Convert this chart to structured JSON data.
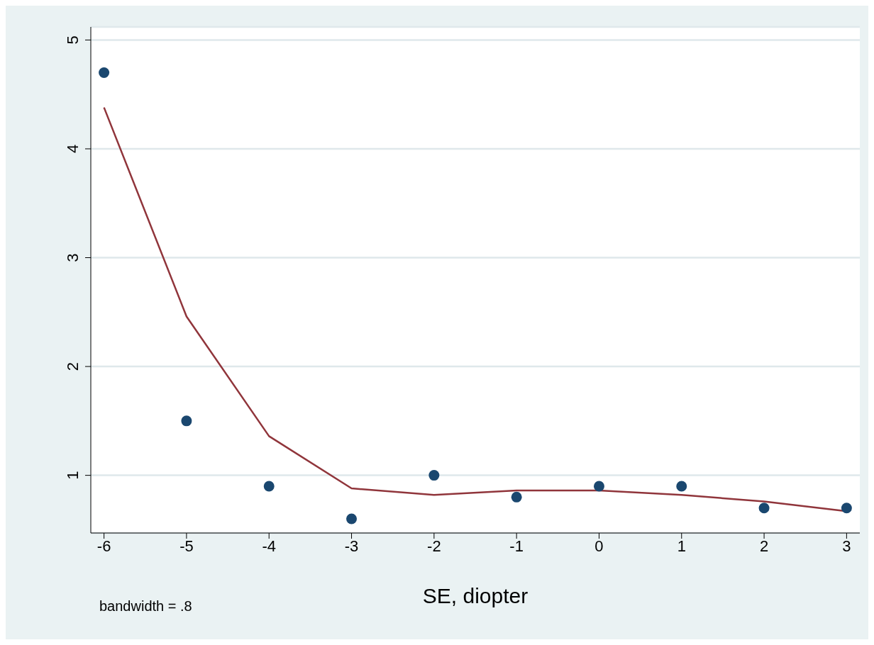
{
  "chart_data": {
    "type": "scatter",
    "xlabel": "SE, diopter",
    "annotations": [
      "bandwidth = .8"
    ],
    "grid": "y",
    "xlim": [
      -6.16,
      3.16
    ],
    "xticks": [
      -6,
      -5,
      -4,
      -3,
      -2,
      -1,
      0,
      1,
      2,
      3
    ],
    "ylim": [
      0.47,
      5.12
    ],
    "yticks": [
      1,
      2,
      3,
      4,
      5
    ],
    "series": [
      {
        "marker": "circle",
        "color": "#1a476f",
        "x": [
          -6,
          -5,
          -4,
          -3,
          -2,
          -1,
          0,
          1,
          2,
          3
        ],
        "values": [
          4.7,
          1.5,
          0.9,
          0.6,
          1.0,
          0.8,
          0.9,
          0.9,
          0.7,
          0.7
        ]
      },
      {
        "type": "line",
        "color": "#90353b",
        "x": [
          -6,
          -5,
          -4,
          -3,
          -2,
          -1,
          0,
          1,
          2,
          3
        ],
        "values": [
          4.38,
          2.46,
          1.36,
          0.88,
          0.82,
          0.86,
          0.86,
          0.82,
          0.76,
          0.67
        ]
      }
    ]
  }
}
